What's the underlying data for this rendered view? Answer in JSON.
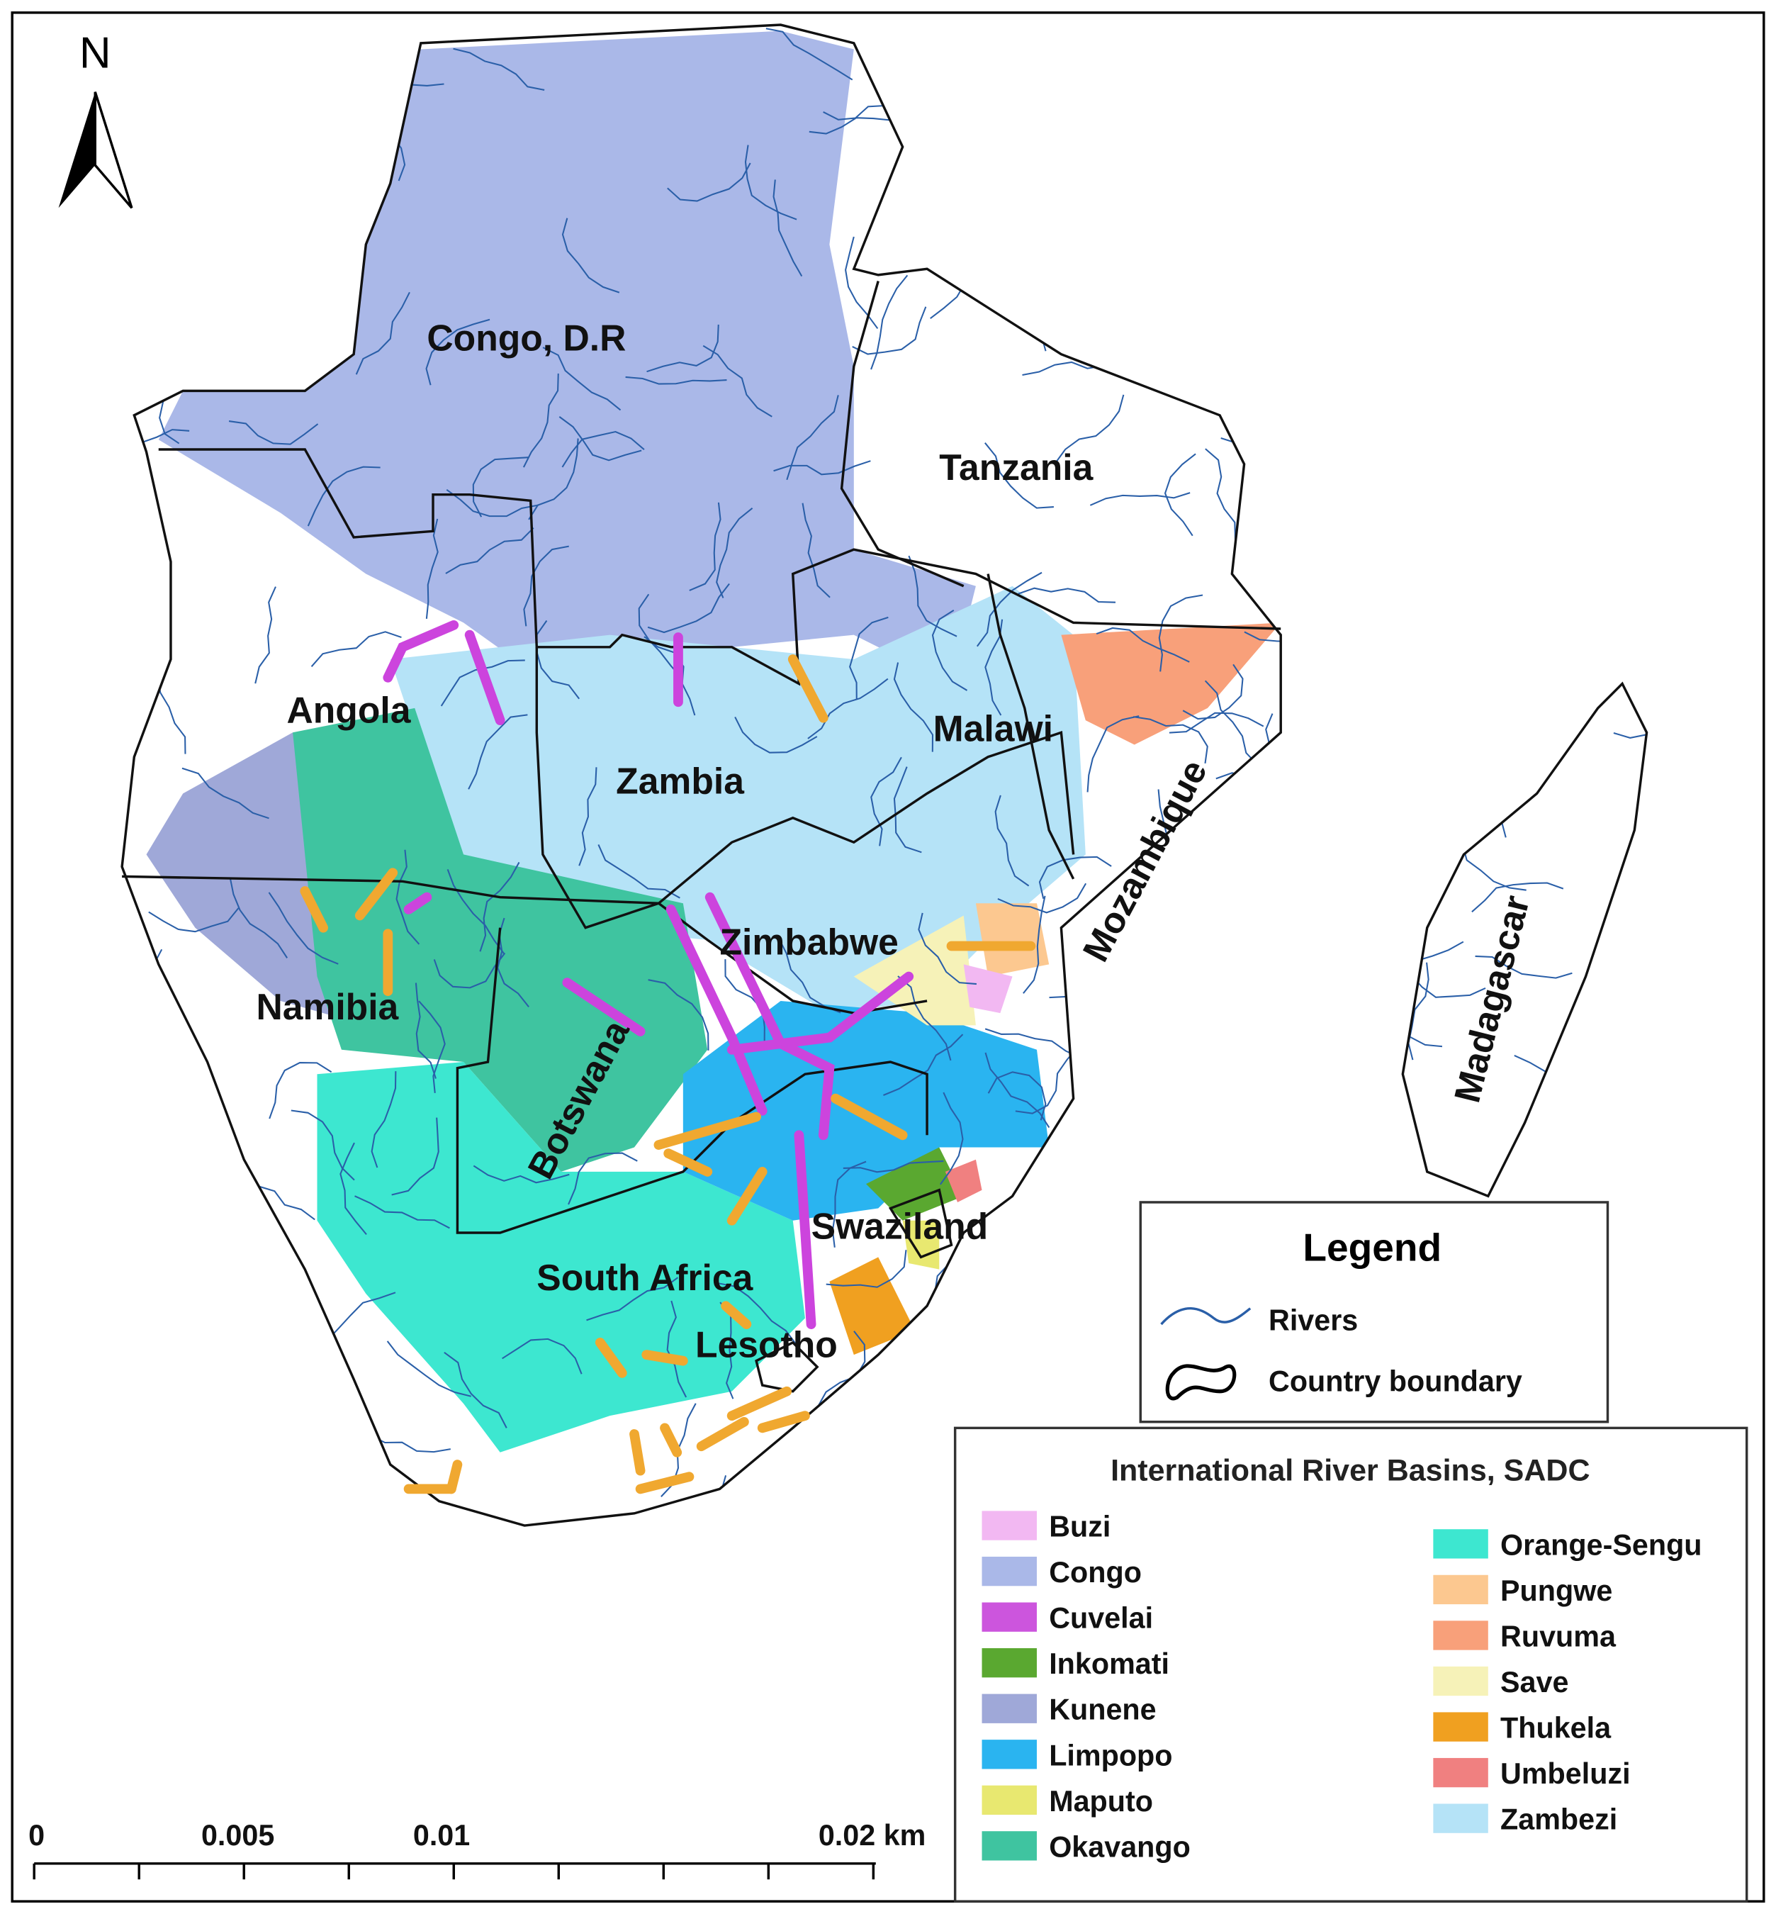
{
  "north": "N",
  "map_labels": [
    "Congo, D.R",
    "Tanzania",
    "Angola",
    "Zambia",
    "Malawi",
    "Mozambique",
    "Zimbabwe",
    "Namibia",
    "Botswana",
    "Swaziland",
    "South Africa",
    "Lesotho",
    "Madagascar"
  ],
  "legend": {
    "title": "Legend",
    "items": [
      "Rivers",
      "Country boundary"
    ]
  },
  "basins": {
    "title": "International River Basins, SADC",
    "items": [
      {
        "name": "Buzi",
        "color": "#f2b8f2"
      },
      {
        "name": "Congo",
        "color": "#aab8e8"
      },
      {
        "name": "Cuvelai",
        "color": "#cc55dd"
      },
      {
        "name": "Inkomati",
        "color": "#5aa830"
      },
      {
        "name": "Kunene",
        "color": "#9fa8d8"
      },
      {
        "name": "Limpopo",
        "color": "#2ab4f0"
      },
      {
        "name": "Maputo",
        "color": "#e8e870"
      },
      {
        "name": "Okavango",
        "color": "#3fc4a0"
      },
      {
        "name": "Orange-Sengu",
        "color": "#3de7d0"
      },
      {
        "name": "Pungwe",
        "color": "#fcc890"
      },
      {
        "name": "Ruvuma",
        "color": "#f8a07a"
      },
      {
        "name": "Save",
        "color": "#f6f2b8"
      },
      {
        "name": "Thukela",
        "color": "#f0a020"
      },
      {
        "name": "Umbeluzi",
        "color": "#f08080"
      },
      {
        "name": "Zambezi",
        "color": "#b5e3f7"
      }
    ]
  },
  "scale_bar": {
    "labels": [
      "0",
      "0.005",
      "0.01",
      "0.02 km"
    ]
  }
}
